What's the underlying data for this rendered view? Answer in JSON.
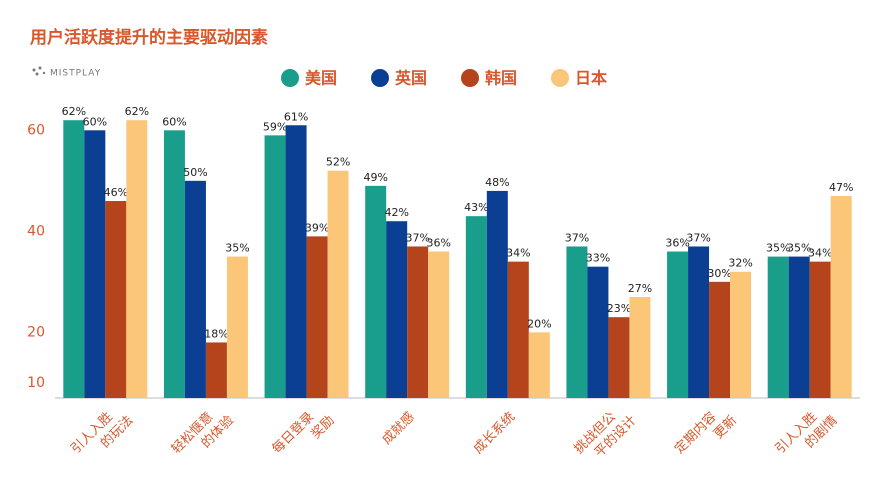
{
  "chart_data": {
    "type": "bar",
    "title": "用户活跃度提升的主要驱动因素",
    "logo": "MISTPLAY",
    "categories": [
      [
        "引人入胜",
        "的玩法"
      ],
      [
        "轻松惬意",
        "的体验"
      ],
      [
        "每日登录",
        "奖励"
      ],
      [
        "成就感"
      ],
      [
        "成长系统"
      ],
      [
        "挑战但公",
        "平的设计"
      ],
      [
        "定期内容",
        "更新"
      ],
      [
        "引人入胜",
        "的剧情"
      ]
    ],
    "series": [
      {
        "name": "美国",
        "color": "#1a9e8c",
        "values": [
          62,
          60,
          59,
          49,
          43,
          37,
          36,
          35
        ],
        "value_labels": [
          "62%",
          "60%",
          "59%",
          "49%",
          "43%",
          "37%",
          "36%",
          "35%"
        ]
      },
      {
        "name": "英国",
        "color": "#0b3f94",
        "values": [
          60,
          50,
          61,
          42,
          48,
          33,
          37,
          35
        ],
        "value_labels": [
          "60%",
          "50%",
          "61%",
          "42%",
          "48%",
          "33%",
          "37%",
          "35%"
        ]
      },
      {
        "name": "韩国",
        "color": "#b5441c",
        "values": [
          46,
          18,
          39,
          37,
          34,
          23,
          30,
          34
        ],
        "value_labels": [
          "46%",
          "18%",
          "39%",
          "37%",
          "34%",
          "23%",
          "30%",
          "34%"
        ]
      },
      {
        "name": "日本",
        "color": "#fbc677",
        "values": [
          62,
          35,
          52,
          36,
          20,
          27,
          32,
          47
        ],
        "value_labels": [
          "62%",
          "35%",
          "52%",
          "36%",
          "20%",
          "27%",
          "32%",
          "47%"
        ]
      }
    ],
    "ylim": [
      7,
      66
    ],
    "yticks": [
      10,
      20,
      40,
      60
    ],
    "grid": false
  }
}
